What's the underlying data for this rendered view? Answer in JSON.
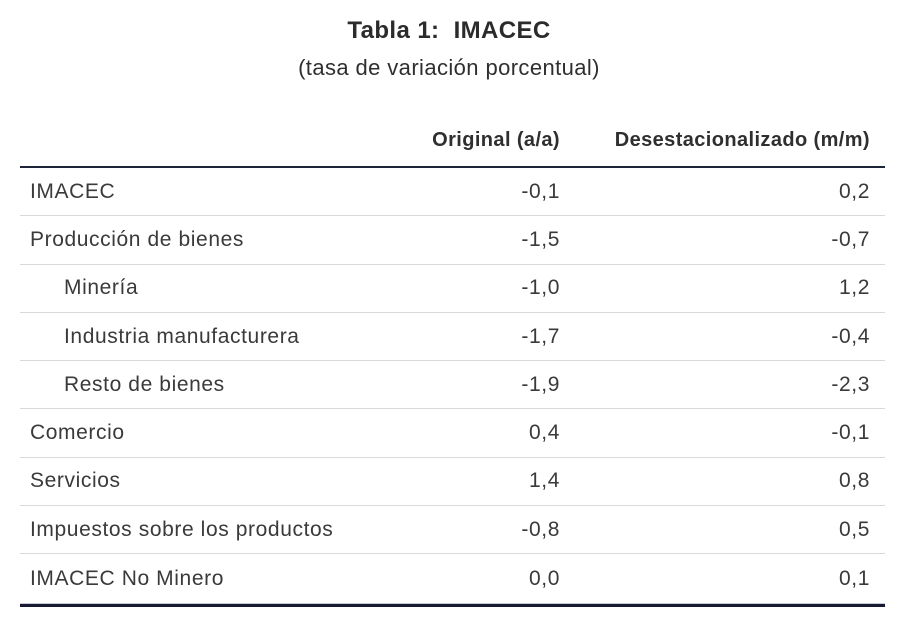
{
  "page": {
    "title": "Tabla 1:  IMACEC",
    "subtitle": "(tasa de variación porcentual)"
  },
  "table": {
    "col_headers": {
      "original": "Original (a/a)",
      "desest": "Desestacionalizado (m/m)"
    },
    "rows": [
      {
        "label": "IMACEC",
        "indent": false,
        "original": "-0,1",
        "desest": "0,2"
      },
      {
        "label": "Producción de bienes",
        "indent": false,
        "original": "-1,5",
        "desest": "-0,7"
      },
      {
        "label": "Minería",
        "indent": true,
        "original": "-1,0",
        "desest": "1,2"
      },
      {
        "label": "Industria manufacturera",
        "indent": true,
        "original": "-1,7",
        "desest": "-0,4"
      },
      {
        "label": "Resto de bienes",
        "indent": true,
        "original": "-1,9",
        "desest": "-2,3"
      },
      {
        "label": "Comercio",
        "indent": false,
        "original": "0,4",
        "desest": "-0,1"
      },
      {
        "label": "Servicios",
        "indent": false,
        "original": "1,4",
        "desest": "0,8"
      },
      {
        "label": "Impuestos sobre los productos",
        "indent": false,
        "original": "-0,8",
        "desest": "0,5"
      },
      {
        "label": "IMACEC No Minero",
        "indent": false,
        "original": "0,0",
        "desest": "0,1"
      }
    ]
  },
  "colors": {
    "rule_dark_top": "#1f2539",
    "rule_dark_bottom": "#161b33",
    "rule_light": "#d9d9d9",
    "text": "#3a3a3a"
  },
  "chart_data": {
    "type": "table",
    "title": "Tabla 1: IMACEC",
    "subtitle": "(tasa de variación porcentual)",
    "columns": [
      "",
      "Original (a/a)",
      "Desestacionalizado (m/m)"
    ],
    "rows": [
      [
        "IMACEC",
        -0.1,
        0.2
      ],
      [
        "Producción de bienes",
        -1.5,
        -0.7
      ],
      [
        "Minería",
        -1.0,
        1.2
      ],
      [
        "Industria manufacturera",
        -1.7,
        -0.4
      ],
      [
        "Resto de bienes",
        -1.9,
        -2.3
      ],
      [
        "Comercio",
        0.4,
        -0.1
      ],
      [
        "Servicios",
        1.4,
        0.8
      ],
      [
        "Impuestos sobre los productos",
        -0.8,
        0.5
      ],
      [
        "IMACEC No Minero",
        0.0,
        0.1
      ]
    ],
    "note": "decimal comma formatting as displayed; sub-rows 3-5 are indented components of Producción de bienes"
  }
}
